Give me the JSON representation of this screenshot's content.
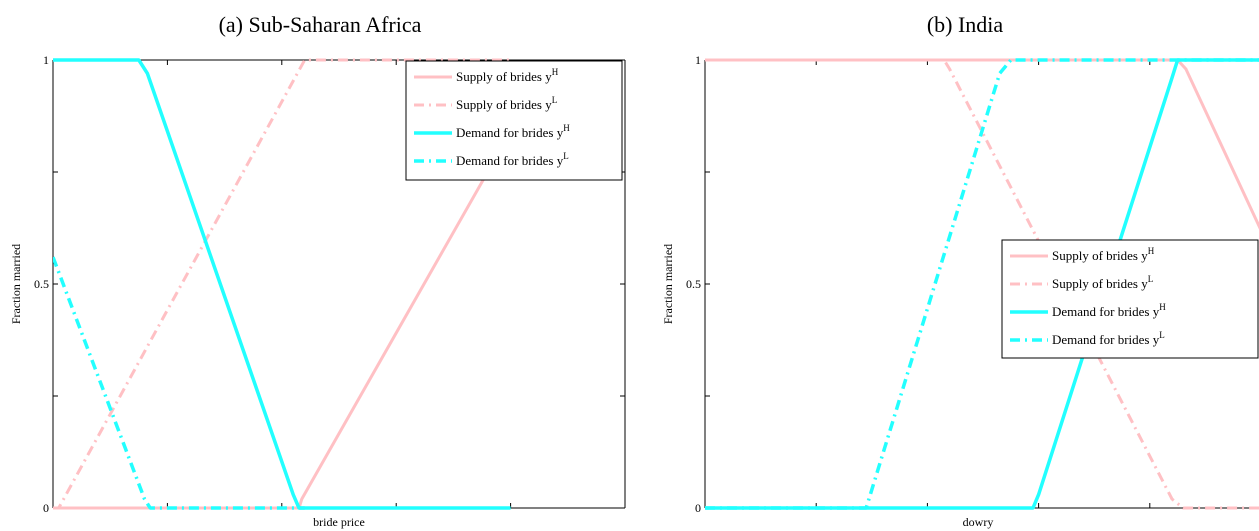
{
  "chart_data": [
    {
      "type": "line",
      "title": "(a) Sub-Saharan Africa",
      "xlabel": "bride price",
      "ylabel": "Fraction married",
      "ylim": [
        0,
        1
      ],
      "xlim": [
        0,
        100
      ],
      "yticks": [
        "0",
        "0.5",
        "1"
      ],
      "legend_position": "top-right",
      "series": [
        {
          "name": "Supply of brides y",
          "sup": "H",
          "color": "#ffc0c4",
          "style": "solid",
          "x": [
            0,
            43,
            43.5,
            80
          ],
          "y": [
            0,
            0,
            0.02,
            0.84
          ]
        },
        {
          "name": "Supply of brides y",
          "sup": "L",
          "color": "#ffc0c4",
          "style": "dashdot",
          "x": [
            0,
            1,
            44,
            80
          ],
          "y": [
            0,
            0,
            1,
            1
          ]
        },
        {
          "name": "Demand for brides y",
          "sup": "H",
          "color": "#22ffff",
          "style": "solid",
          "x": [
            0,
            15,
            16.5,
            42,
            43,
            80
          ],
          "y": [
            1,
            1,
            0.97,
            0.03,
            0,
            0
          ]
        },
        {
          "name": "Demand for brides y",
          "sup": "L",
          "color": "#22ffff",
          "style": "dashdot",
          "x": [
            0,
            16,
            17,
            44
          ],
          "y": [
            0.56,
            0.02,
            0,
            0
          ]
        }
      ]
    },
    {
      "type": "line",
      "title": "(b) India",
      "xlabel": "dowry",
      "ylabel": "Fraction married",
      "ylim": [
        0,
        1
      ],
      "xlim": [
        0,
        100
      ],
      "yticks": [
        "0",
        "0.5",
        "1"
      ],
      "legend_position": "center-right",
      "series": [
        {
          "name": "Supply of brides y",
          "sup": "H",
          "color": "#ffc0c4",
          "style": "solid",
          "x": [
            0,
            85,
            86.5,
            100
          ],
          "y": [
            1,
            1,
            0.98,
            0.62
          ]
        },
        {
          "name": "Supply of brides y",
          "sup": "L",
          "color": "#ffc0c4",
          "style": "dashdot",
          "x": [
            0,
            43,
            44,
            84,
            86,
            100
          ],
          "y": [
            1,
            1,
            0.98,
            0.02,
            0,
            0
          ]
        },
        {
          "name": "Demand for brides y",
          "sup": "H",
          "color": "#22ffff",
          "style": "solid",
          "x": [
            0,
            59,
            60,
            84,
            85,
            100
          ],
          "y": [
            0,
            0,
            0.03,
            0.96,
            1,
            1
          ]
        },
        {
          "name": "Demand for brides y",
          "sup": "L",
          "color": "#22ffff",
          "style": "dashdot",
          "x": [
            0,
            29,
            53,
            55,
            100
          ],
          "y": [
            0,
            0,
            0.97,
            1,
            1
          ]
        }
      ]
    }
  ]
}
